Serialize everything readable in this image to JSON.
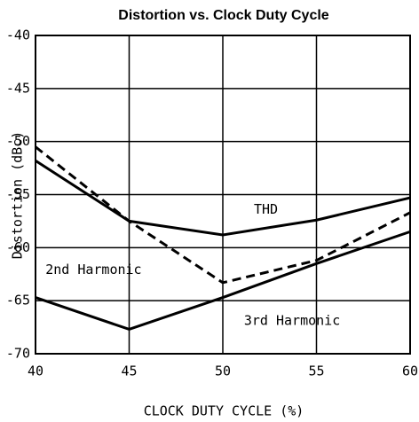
{
  "chart_data": {
    "type": "line",
    "title": "Distortion vs. Clock Duty Cycle",
    "xlabel": "CLOCK DUTY CYCLE (%)",
    "ylabel": "Distortion (dBc)",
    "x": [
      40,
      45,
      50,
      55,
      60
    ],
    "series": [
      {
        "name": "THD",
        "color": "#000000",
        "dash": false,
        "values": [
          -51.8,
          -57.5,
          -58.8,
          -57.4,
          -55.3
        ]
      },
      {
        "name": "2nd Harmonic",
        "color": "#000000",
        "dash": true,
        "values": [
          -50.5,
          -57.5,
          -63.3,
          -61.2,
          -56.7
        ]
      },
      {
        "name": "3rd Harmonic",
        "color": "#000000",
        "dash": false,
        "values": [
          -64.7,
          -67.7,
          -64.7,
          -61.5,
          -58.5
        ]
      }
    ],
    "annotations": [
      {
        "text": "THD",
        "x": 52.3,
        "y": -56.4
      },
      {
        "text": "2nd Harmonic",
        "x": 43.1,
        "y": -62.1
      },
      {
        "text": "3rd Harmonic",
        "x": 53.7,
        "y": -66.9
      }
    ],
    "xlim": [
      40,
      60
    ],
    "xticks": [
      40,
      45,
      50,
      55,
      60
    ],
    "ylim": [
      -70,
      -40
    ],
    "yticks": [
      -70,
      -65,
      -60,
      -55,
      -50,
      -45,
      -40
    ],
    "grid": true
  }
}
